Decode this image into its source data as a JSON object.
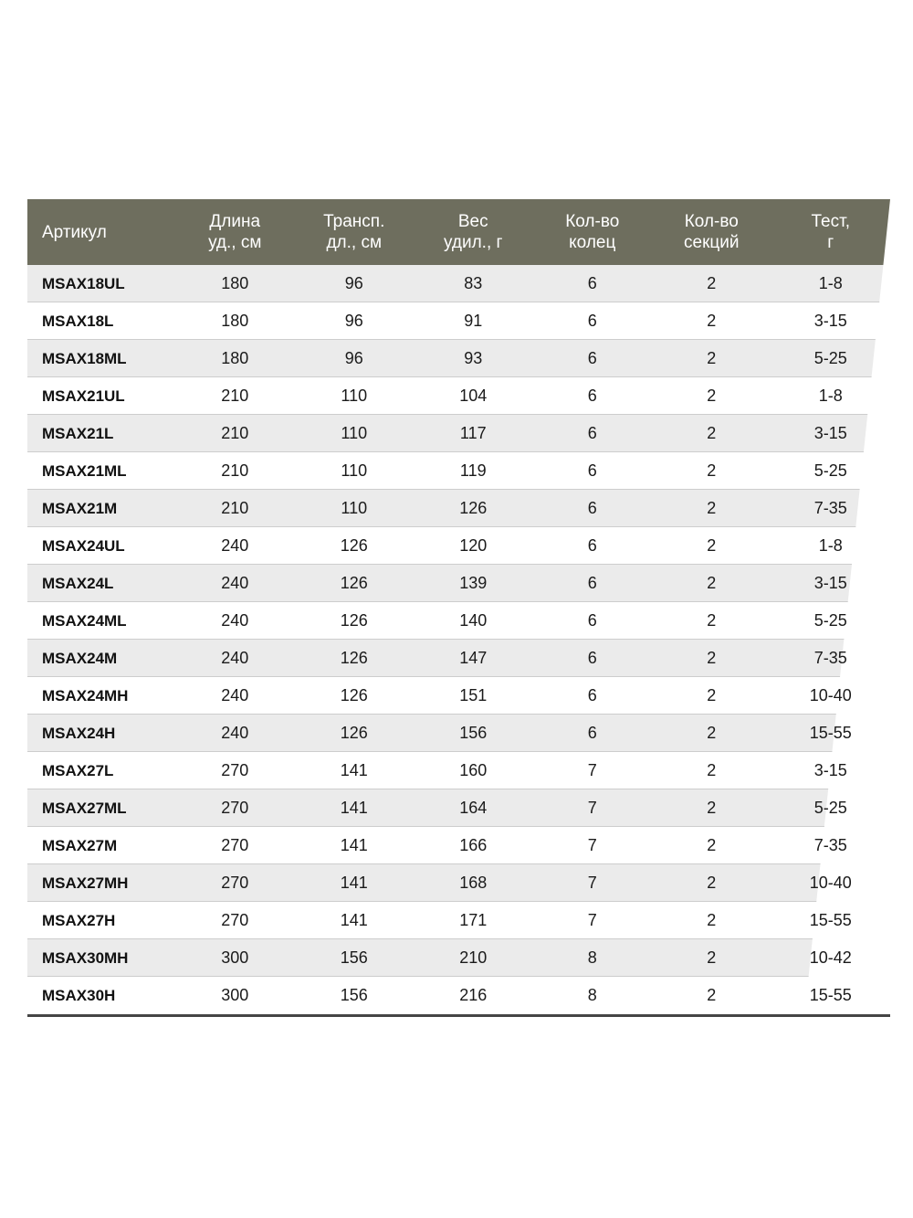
{
  "chart_data": {
    "type": "table",
    "title": "",
    "columns": [
      "Артикул",
      "Длина уд., см",
      "Трансп. дл., см",
      "Вес удил., г",
      "Кол-во колец",
      "Кол-во секций",
      "Тест, г"
    ],
    "rows": [
      [
        "MSAX18UL",
        180,
        96,
        83,
        6,
        2,
        "1-8"
      ],
      [
        "MSAX18L",
        180,
        96,
        91,
        6,
        2,
        "3-15"
      ],
      [
        "MSAX18ML",
        180,
        96,
        93,
        6,
        2,
        "5-25"
      ],
      [
        "MSAX21UL",
        210,
        110,
        104,
        6,
        2,
        "1-8"
      ],
      [
        "MSAX21L",
        210,
        110,
        117,
        6,
        2,
        "3-15"
      ],
      [
        "MSAX21ML",
        210,
        110,
        119,
        6,
        2,
        "5-25"
      ],
      [
        "MSAX21M",
        210,
        110,
        126,
        6,
        2,
        "7-35"
      ],
      [
        "MSAX24UL",
        240,
        126,
        120,
        6,
        2,
        "1-8"
      ],
      [
        "MSAX24L",
        240,
        126,
        139,
        6,
        2,
        "3-15"
      ],
      [
        "MSAX24ML",
        240,
        126,
        140,
        6,
        2,
        "5-25"
      ],
      [
        "MSAX24M",
        240,
        126,
        147,
        6,
        2,
        "7-35"
      ],
      [
        "MSAX24MH",
        240,
        126,
        151,
        6,
        2,
        "10-40"
      ],
      [
        "MSAX24H",
        240,
        126,
        156,
        6,
        2,
        "15-55"
      ],
      [
        "MSAX27L",
        270,
        141,
        160,
        7,
        2,
        "3-15"
      ],
      [
        "MSAX27ML",
        270,
        141,
        164,
        7,
        2,
        "5-25"
      ],
      [
        "MSAX27M",
        270,
        141,
        166,
        7,
        2,
        "7-35"
      ],
      [
        "MSAX27MH",
        270,
        141,
        168,
        7,
        2,
        "10-40"
      ],
      [
        "MSAX27H",
        270,
        141,
        171,
        7,
        2,
        "15-55"
      ],
      [
        "MSAX30MH",
        300,
        156,
        210,
        8,
        2,
        "10-42"
      ],
      [
        "MSAX30H",
        300,
        156,
        216,
        8,
        2,
        "15-55"
      ]
    ]
  },
  "header_display": [
    "Артикул",
    "Длина\nуд., см",
    "Трансп.\nдл., см",
    "Вес\nудил.,  г",
    "Кол-во\nколец",
    "Кол-во\nсекций",
    "Тест,\nг"
  ],
  "colors": {
    "header_bg": "#6e6e5e",
    "header_text": "#ffffff",
    "row_alt_bg": "#ebebeb",
    "row_bg": "#ffffff",
    "separator": "#cdcdcd",
    "bottom_rule": "#454545",
    "body_text": "#1a1a1a"
  }
}
